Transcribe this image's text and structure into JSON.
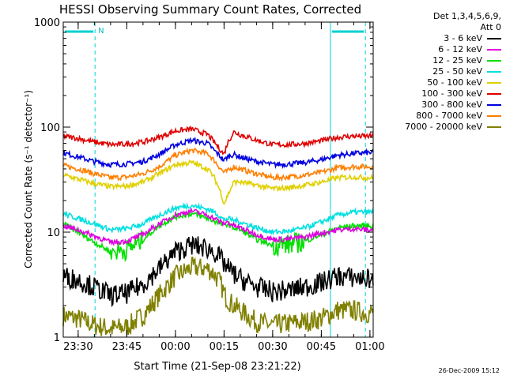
{
  "chart_data": {
    "type": "line",
    "title": "HESSI Observing Summary Count Rates, Corrected",
    "xlabel": "Start Time (21-Sep-08 23:21:22)",
    "ylabel": "Corrected Count Rate (s⁻¹ detector⁻¹)",
    "yscale": "log",
    "ylim": [
      1,
      1000
    ],
    "xlim_minutes_from_2330": [
      -4.6,
      91
    ],
    "x_ticks": [
      {
        "label": "23:30",
        "t": 0
      },
      {
        "label": "23:45",
        "t": 15
      },
      {
        "label": "00:00",
        "t": 30
      },
      {
        "label": "00:15",
        "t": 45
      },
      {
        "label": "00:30",
        "t": 60
      },
      {
        "label": "00:45",
        "t": 75
      },
      {
        "label": "01:00",
        "t": 90
      }
    ],
    "y_ticks": [
      {
        "label": "1",
        "v": 1
      },
      {
        "label": "10",
        "v": 10
      },
      {
        "label": "100",
        "v": 100
      },
      {
        "label": "1000",
        "v": 1000
      }
    ],
    "legend": {
      "header": [
        "Det 1,3,4,5,6,9,",
        "Att 0"
      ],
      "placement": "right"
    },
    "night_periods": [
      {
        "start": -4.6,
        "end": 5.2,
        "label": ""
      },
      {
        "start": 77.8,
        "end": 88.6,
        "label": ""
      }
    ],
    "saa_marker": {
      "label": "N",
      "t": 5.2
    },
    "x": [
      -4.6,
      0,
      5,
      10,
      15,
      20,
      25,
      30,
      35,
      40,
      42,
      44,
      45,
      46,
      48,
      50,
      55,
      60,
      65,
      70,
      75,
      80,
      85,
      88.6
    ],
    "series": [
      {
        "name": "3 - 6 keV",
        "color": "#000000",
        "values": [
          3.8,
          3.5,
          3.0,
          2.5,
          2.6,
          3.2,
          4.5,
          6.5,
          7.5,
          7.0,
          6.5,
          5.5,
          5.0,
          4.6,
          4.0,
          3.6,
          3.0,
          2.7,
          2.8,
          3.0,
          3.3,
          3.8,
          3.7,
          3.6
        ]
      },
      {
        "name": "6 - 12 keV",
        "color": "#e000e0",
        "values": [
          11.5,
          10.5,
          9.2,
          8.0,
          8.2,
          9.5,
          12.0,
          14.5,
          16.0,
          14.5,
          13.5,
          12.5,
          12.0,
          12.5,
          11.5,
          11.0,
          9.5,
          8.5,
          8.6,
          9.0,
          9.8,
          10.5,
          10.8,
          10.5
        ]
      },
      {
        "name": "12 - 25 keV",
        "color": "#00e000",
        "values": [
          12.0,
          10.0,
          8.0,
          6.5,
          6.8,
          8.5,
          11.5,
          14.0,
          15.0,
          13.5,
          12.8,
          12.0,
          11.5,
          12.0,
          11.0,
          10.5,
          8.5,
          7.5,
          7.6,
          8.2,
          9.5,
          11.0,
          11.5,
          11.5
        ]
      },
      {
        "name": "25 - 50 keV",
        "color": "#00e0e0",
        "values": [
          15.0,
          13.5,
          12.0,
          10.5,
          10.8,
          12.0,
          14.5,
          17.0,
          18.0,
          16.5,
          15.5,
          14.0,
          13.0,
          13.5,
          13.0,
          12.5,
          11.0,
          10.0,
          10.2,
          11.0,
          12.5,
          14.5,
          15.5,
          15.5
        ]
      },
      {
        "name": "50 - 100 keV",
        "color": "#e0d000",
        "values": [
          35.0,
          32.0,
          29.0,
          27.0,
          27.5,
          30.0,
          36.0,
          44.0,
          46.0,
          40.0,
          33.0,
          24.0,
          18.5,
          22.0,
          30.0,
          30.0,
          28.0,
          26.0,
          26.5,
          28.0,
          30.0,
          33.0,
          33.5,
          33.0
        ]
      },
      {
        "name": "100 - 300 keV",
        "color": "#e00000",
        "values": [
          82.0,
          78.0,
          72.0,
          68.0,
          69.0,
          72.0,
          80.0,
          92.0,
          96.0,
          85.0,
          72.0,
          60.0,
          55.0,
          70.0,
          90.0,
          85.0,
          75.0,
          68.0,
          68.0,
          70.0,
          74.0,
          80.0,
          82.0,
          82.0
        ]
      },
      {
        "name": "300 - 800 keV",
        "color": "#0000e0",
        "values": [
          57.0,
          52.0,
          47.0,
          44.0,
          44.5,
          47.0,
          55.0,
          68.0,
          75.0,
          70.0,
          60.0,
          52.0,
          48.0,
          52.0,
          55.0,
          52.0,
          47.0,
          44.0,
          44.5,
          46.0,
          49.0,
          54.0,
          56.0,
          57.0
        ]
      },
      {
        "name": "800 - 7000 keV",
        "color": "#ff7f00",
        "values": [
          43.0,
          40.0,
          36.0,
          33.0,
          33.5,
          36.0,
          42.0,
          54.0,
          60.0,
          56.0,
          48.0,
          40.0,
          37.0,
          38.0,
          42.0,
          40.0,
          36.0,
          33.0,
          33.5,
          35.0,
          37.0,
          41.0,
          42.0,
          42.0
        ]
      },
      {
        "name": "7000 - 20000 keV",
        "color": "#808000",
        "values": [
          1.6,
          1.5,
          1.3,
          1.2,
          1.25,
          1.6,
          2.5,
          3.8,
          4.6,
          4.5,
          4.0,
          3.2,
          2.6,
          2.3,
          2.0,
          1.8,
          1.4,
          1.3,
          1.35,
          1.4,
          1.5,
          1.8,
          1.8,
          1.7
        ]
      }
    ],
    "grid": false
  },
  "timestamp": "26-Dec-2009 15:12"
}
